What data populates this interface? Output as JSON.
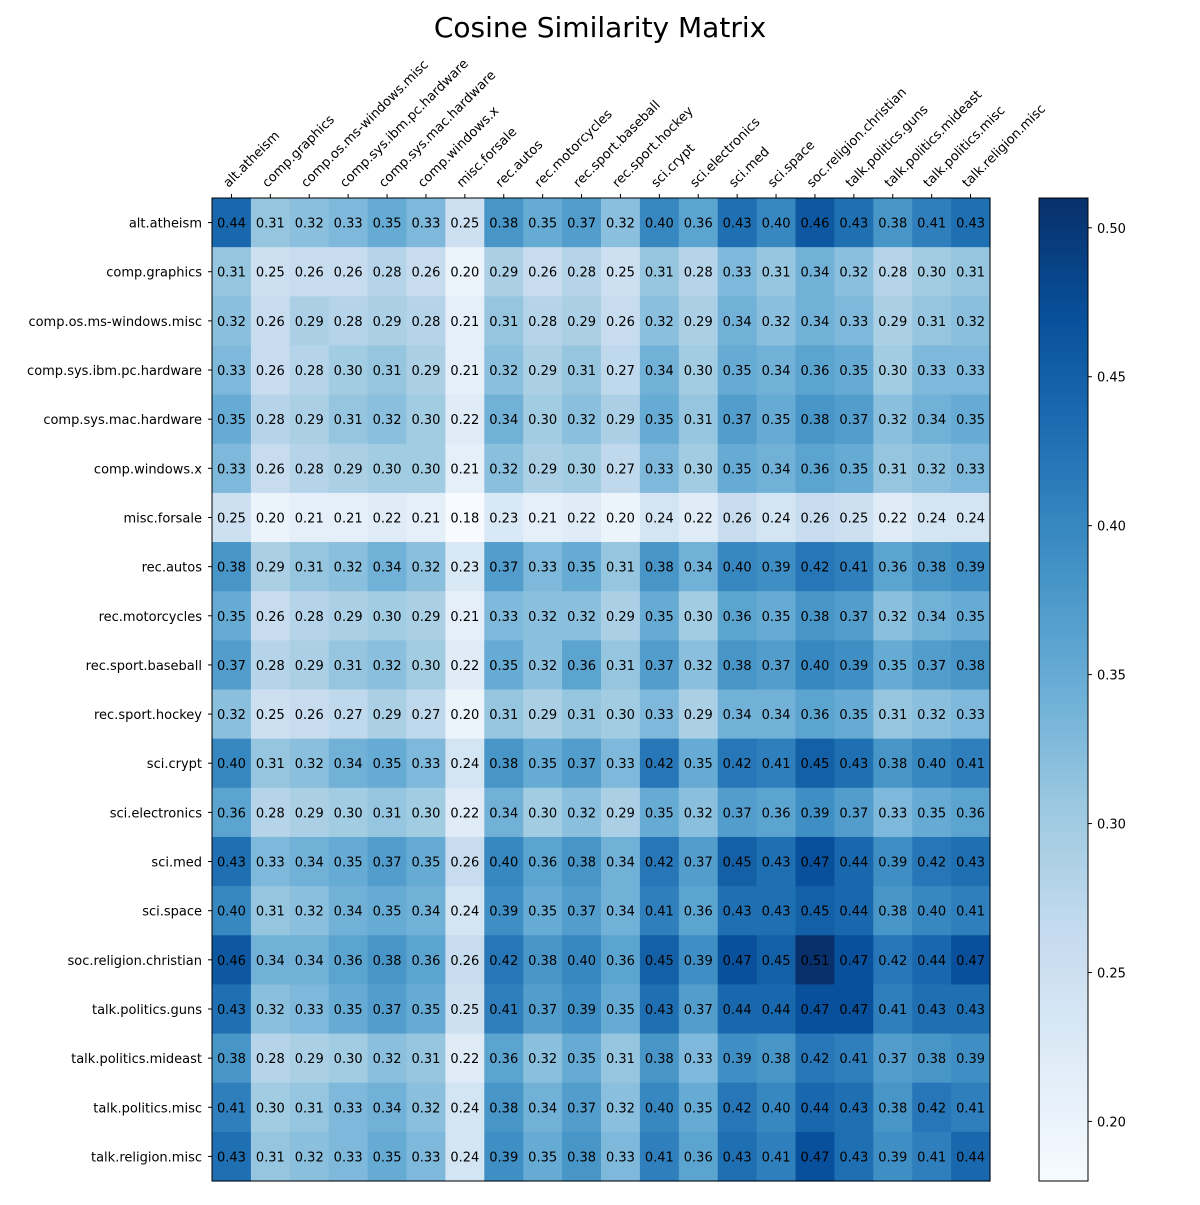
{
  "chart_data": {
    "type": "heatmap",
    "title": "Cosine Similarity Matrix",
    "xlabel": "",
    "ylabel": "",
    "x_categories": [
      "alt.atheism",
      "comp.graphics",
      "comp.os.ms-windows.misc",
      "comp.sys.ibm.pc.hardware",
      "comp.sys.mac.hardware",
      "comp.windows.x",
      "misc.forsale",
      "rec.autos",
      "rec.motorcycles",
      "rec.sport.baseball",
      "rec.sport.hockey",
      "sci.crypt",
      "sci.electronics",
      "sci.med",
      "sci.space",
      "soc.religion.christian",
      "talk.politics.guns",
      "talk.politics.mideast",
      "talk.politics.misc",
      "talk.religion.misc"
    ],
    "y_categories": [
      "alt.atheism",
      "comp.graphics",
      "comp.os.ms-windows.misc",
      "comp.sys.ibm.pc.hardware",
      "comp.sys.mac.hardware",
      "comp.windows.x",
      "misc.forsale",
      "rec.autos",
      "rec.motorcycles",
      "rec.sport.baseball",
      "rec.sport.hockey",
      "sci.crypt",
      "sci.electronics",
      "sci.med",
      "sci.space",
      "soc.religion.christian",
      "talk.politics.guns",
      "talk.politics.mideast",
      "talk.politics.misc",
      "talk.religion.misc"
    ],
    "values": [
      [
        0.44,
        0.31,
        0.32,
        0.33,
        0.35,
        0.33,
        0.25,
        0.38,
        0.35,
        0.37,
        0.32,
        0.4,
        0.36,
        0.43,
        0.4,
        0.46,
        0.43,
        0.38,
        0.41,
        0.43
      ],
      [
        0.31,
        0.25,
        0.26,
        0.26,
        0.28,
        0.26,
        0.2,
        0.29,
        0.26,
        0.28,
        0.25,
        0.31,
        0.28,
        0.33,
        0.31,
        0.34,
        0.32,
        0.28,
        0.3,
        0.31
      ],
      [
        0.32,
        0.26,
        0.29,
        0.28,
        0.29,
        0.28,
        0.21,
        0.31,
        0.28,
        0.29,
        0.26,
        0.32,
        0.29,
        0.34,
        0.32,
        0.34,
        0.33,
        0.29,
        0.31,
        0.32
      ],
      [
        0.33,
        0.26,
        0.28,
        0.3,
        0.31,
        0.29,
        0.21,
        0.32,
        0.29,
        0.31,
        0.27,
        0.34,
        0.3,
        0.35,
        0.34,
        0.36,
        0.35,
        0.3,
        0.33,
        0.33
      ],
      [
        0.35,
        0.28,
        0.29,
        0.31,
        0.32,
        0.3,
        0.22,
        0.34,
        0.3,
        0.32,
        0.29,
        0.35,
        0.31,
        0.37,
        0.35,
        0.38,
        0.37,
        0.32,
        0.34,
        0.35
      ],
      [
        0.33,
        0.26,
        0.28,
        0.29,
        0.3,
        0.3,
        0.21,
        0.32,
        0.29,
        0.3,
        0.27,
        0.33,
        0.3,
        0.35,
        0.34,
        0.36,
        0.35,
        0.31,
        0.32,
        0.33
      ],
      [
        0.25,
        0.2,
        0.21,
        0.21,
        0.22,
        0.21,
        0.18,
        0.23,
        0.21,
        0.22,
        0.2,
        0.24,
        0.22,
        0.26,
        0.24,
        0.26,
        0.25,
        0.22,
        0.24,
        0.24
      ],
      [
        0.38,
        0.29,
        0.31,
        0.32,
        0.34,
        0.32,
        0.23,
        0.37,
        0.33,
        0.35,
        0.31,
        0.38,
        0.34,
        0.4,
        0.39,
        0.42,
        0.41,
        0.36,
        0.38,
        0.39
      ],
      [
        0.35,
        0.26,
        0.28,
        0.29,
        0.3,
        0.29,
        0.21,
        0.33,
        0.32,
        0.32,
        0.29,
        0.35,
        0.3,
        0.36,
        0.35,
        0.38,
        0.37,
        0.32,
        0.34,
        0.35
      ],
      [
        0.37,
        0.28,
        0.29,
        0.31,
        0.32,
        0.3,
        0.22,
        0.35,
        0.32,
        0.36,
        0.31,
        0.37,
        0.32,
        0.38,
        0.37,
        0.4,
        0.39,
        0.35,
        0.37,
        0.38
      ],
      [
        0.32,
        0.25,
        0.26,
        0.27,
        0.29,
        0.27,
        0.2,
        0.31,
        0.29,
        0.31,
        0.3,
        0.33,
        0.29,
        0.34,
        0.34,
        0.36,
        0.35,
        0.31,
        0.32,
        0.33
      ],
      [
        0.4,
        0.31,
        0.32,
        0.34,
        0.35,
        0.33,
        0.24,
        0.38,
        0.35,
        0.37,
        0.33,
        0.42,
        0.35,
        0.42,
        0.41,
        0.45,
        0.43,
        0.38,
        0.4,
        0.41
      ],
      [
        0.36,
        0.28,
        0.29,
        0.3,
        0.31,
        0.3,
        0.22,
        0.34,
        0.3,
        0.32,
        0.29,
        0.35,
        0.32,
        0.37,
        0.36,
        0.39,
        0.37,
        0.33,
        0.35,
        0.36
      ],
      [
        0.43,
        0.33,
        0.34,
        0.35,
        0.37,
        0.35,
        0.26,
        0.4,
        0.36,
        0.38,
        0.34,
        0.42,
        0.37,
        0.45,
        0.43,
        0.47,
        0.44,
        0.39,
        0.42,
        0.43
      ],
      [
        0.4,
        0.31,
        0.32,
        0.34,
        0.35,
        0.34,
        0.24,
        0.39,
        0.35,
        0.37,
        0.34,
        0.41,
        0.36,
        0.43,
        0.43,
        0.45,
        0.44,
        0.38,
        0.4,
        0.41
      ],
      [
        0.46,
        0.34,
        0.34,
        0.36,
        0.38,
        0.36,
        0.26,
        0.42,
        0.38,
        0.4,
        0.36,
        0.45,
        0.39,
        0.47,
        0.45,
        0.51,
        0.47,
        0.42,
        0.44,
        0.47
      ],
      [
        0.43,
        0.32,
        0.33,
        0.35,
        0.37,
        0.35,
        0.25,
        0.41,
        0.37,
        0.39,
        0.35,
        0.43,
        0.37,
        0.44,
        0.44,
        0.47,
        0.47,
        0.41,
        0.43,
        0.43
      ],
      [
        0.38,
        0.28,
        0.29,
        0.3,
        0.32,
        0.31,
        0.22,
        0.36,
        0.32,
        0.35,
        0.31,
        0.38,
        0.33,
        0.39,
        0.38,
        0.42,
        0.41,
        0.37,
        0.38,
        0.39
      ],
      [
        0.41,
        0.3,
        0.31,
        0.33,
        0.34,
        0.32,
        0.24,
        0.38,
        0.34,
        0.37,
        0.32,
        0.4,
        0.35,
        0.42,
        0.4,
        0.44,
        0.43,
        0.38,
        0.42,
        0.41
      ],
      [
        0.43,
        0.31,
        0.32,
        0.33,
        0.35,
        0.33,
        0.24,
        0.39,
        0.35,
        0.38,
        0.33,
        0.41,
        0.36,
        0.43,
        0.41,
        0.47,
        0.43,
        0.39,
        0.41,
        0.44
      ]
    ],
    "colorscale": "Blues",
    "colorbar": {
      "range": [
        0.18,
        0.51
      ],
      "ticks": [
        0.2,
        0.25,
        0.3,
        0.35,
        0.4,
        0.45,
        0.5
      ],
      "tick_labels": [
        "0.20",
        "0.25",
        "0.30",
        "0.35",
        "0.40",
        "0.45",
        "0.50"
      ]
    },
    "cell_labels": true,
    "grid": false
  }
}
